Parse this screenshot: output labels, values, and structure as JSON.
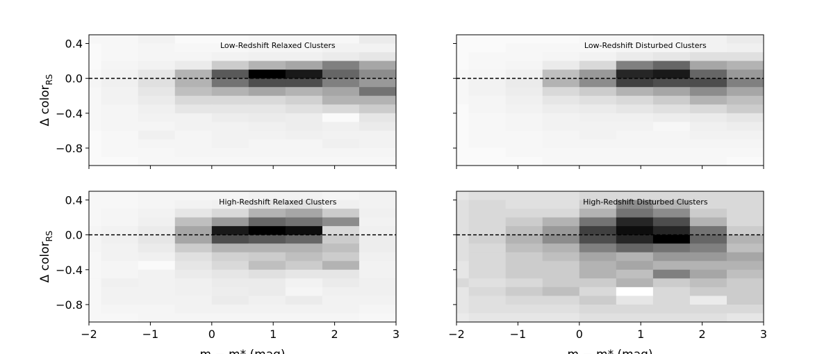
{
  "chart_data": [
    {
      "type": "heatmap",
      "title": "Low-Redshift Relaxed Clusters",
      "ylabel": "Δ color",
      "ylabel_sub": "RS",
      "colormap": "Greys",
      "x_edges": [
        -2.4,
        -1.8,
        -1.2,
        -0.6,
        0,
        0.6,
        1.2,
        1.8,
        2.4,
        3.0
      ],
      "y_edges": [
        0.5,
        0.4,
        0.3,
        0.2,
        0.1,
        0,
        -0.1,
        -0.2,
        -0.3,
        -0.4,
        -0.5,
        -0.6,
        -0.7,
        -0.8,
        -0.9,
        -1.0
      ],
      "z": [
        [
          0.03,
          0.03,
          0.05,
          0.02,
          0.02,
          0.03,
          0.03,
          0.03,
          0.08
        ],
        [
          0.02,
          0.03,
          0.04,
          0.03,
          0.03,
          0.04,
          0.04,
          0.05,
          0.05
        ],
        [
          0.02,
          0.03,
          0.04,
          0.04,
          0.05,
          0.06,
          0.06,
          0.08,
          0.1
        ],
        [
          0.02,
          0.04,
          0.05,
          0.08,
          0.2,
          0.3,
          0.35,
          0.5,
          0.35
        ],
        [
          0.03,
          0.05,
          0.1,
          0.3,
          0.65,
          1,
          0.9,
          0.6,
          0.45
        ],
        [
          0.04,
          0.06,
          0.12,
          0.3,
          0.55,
          0.7,
          0.7,
          0.5,
          0.4
        ],
        [
          0.03,
          0.05,
          0.1,
          0.25,
          0.3,
          0.35,
          0.3,
          0.35,
          0.55
        ],
        [
          0.03,
          0.05,
          0.08,
          0.15,
          0.15,
          0.15,
          0.18,
          0.3,
          0.3
        ],
        [
          0.03,
          0.04,
          0.06,
          0.1,
          0.1,
          0.1,
          0.12,
          0.15,
          0.2
        ],
        [
          0.03,
          0.04,
          0.05,
          0.05,
          0.07,
          0.08,
          0.07,
          0.02,
          0.1
        ],
        [
          0.03,
          0.04,
          0.04,
          0.05,
          0.05,
          0.06,
          0.07,
          0.06,
          0.08
        ],
        [
          0.02,
          0.03,
          0.06,
          0.04,
          0.05,
          0.05,
          0.06,
          0.05,
          0.05
        ],
        [
          0.02,
          0.03,
          0.04,
          0.04,
          0.05,
          0.04,
          0.04,
          0.06,
          0.05
        ],
        [
          0.02,
          0.03,
          0.03,
          0.04,
          0.04,
          0.04,
          0.04,
          0.04,
          0.04
        ],
        [
          0.02,
          0.02,
          0.03,
          0.03,
          0.03,
          0.03,
          0.03,
          0.03,
          0.03
        ]
      ],
      "xlim": [
        -2,
        3
      ],
      "ylim": [
        -1.0,
        0.5
      ],
      "hline": 0,
      "xticks": [
        {
          "value": -2,
          "label": "−2"
        },
        {
          "value": -1,
          "label": "−1"
        },
        0,
        1,
        2,
        3
      ],
      "yticks": [
        {
          "value": 0.4,
          "label": "0.4"
        },
        {
          "value": 0,
          "label": "0.0"
        },
        {
          "value": -0.4,
          "label": "−0.4"
        },
        {
          "value": -0.8,
          "label": "−0.8"
        }
      ],
      "xtick_labels": false,
      "ytick_labels": true
    },
    {
      "type": "heatmap",
      "title": "Low-Redshift Disturbed Clusters",
      "colormap": "Greys",
      "x_edges": [
        -2.4,
        -1.8,
        -1.2,
        -0.6,
        0,
        0.6,
        1.2,
        1.8,
        2.4,
        3.0
      ],
      "y_edges": [
        0.5,
        0.4,
        0.3,
        0.2,
        0.1,
        0,
        -0.1,
        -0.2,
        -0.3,
        -0.4,
        -0.5,
        -0.6,
        -0.7,
        -0.8,
        -0.9,
        -1.0
      ],
      "z": [
        [
          0.02,
          0.02,
          0.02,
          0.02,
          0.03,
          0.03,
          0.04,
          0.05,
          0.08
        ],
        [
          0.02,
          0.02,
          0.03,
          0.03,
          0.03,
          0.04,
          0.04,
          0.05,
          0.06
        ],
        [
          0.02,
          0.03,
          0.03,
          0.04,
          0.05,
          0.08,
          0.1,
          0.12,
          0.12
        ],
        [
          0.02,
          0.03,
          0.04,
          0.08,
          0.15,
          0.5,
          0.6,
          0.35,
          0.3
        ],
        [
          0.03,
          0.04,
          0.06,
          0.25,
          0.4,
          0.85,
          0.9,
          0.6,
          0.4
        ],
        [
          0.03,
          0.05,
          0.08,
          0.3,
          0.45,
          0.75,
          0.7,
          0.7,
          0.5
        ],
        [
          0.03,
          0.05,
          0.07,
          0.15,
          0.2,
          0.3,
          0.35,
          0.45,
          0.35
        ],
        [
          0.03,
          0.04,
          0.06,
          0.1,
          0.12,
          0.15,
          0.2,
          0.3,
          0.25
        ],
        [
          0.02,
          0.04,
          0.05,
          0.07,
          0.08,
          0.1,
          0.12,
          0.15,
          0.2
        ],
        [
          0.02,
          0.03,
          0.04,
          0.05,
          0.06,
          0.06,
          0.07,
          0.08,
          0.1
        ],
        [
          0.02,
          0.03,
          0.04,
          0.05,
          0.05,
          0.05,
          0.03,
          0.06,
          0.07
        ],
        [
          0.02,
          0.03,
          0.03,
          0.04,
          0.05,
          0.04,
          0.04,
          0.05,
          0.05
        ],
        [
          0.02,
          0.03,
          0.03,
          0.04,
          0.04,
          0.04,
          0.04,
          0.04,
          0.04
        ],
        [
          0.02,
          0.02,
          0.03,
          0.03,
          0.03,
          0.03,
          0.03,
          0.03,
          0.03
        ],
        [
          0.02,
          0.02,
          0.02,
          0.03,
          0.03,
          0.03,
          0.03,
          0.03,
          0.02
        ]
      ],
      "xlim": [
        -2,
        3
      ],
      "ylim": [
        -1.0,
        0.5
      ],
      "hline": 0,
      "xticks": [
        -2,
        -1,
        0,
        1,
        2,
        3
      ],
      "yticks": [
        0.4,
        0,
        -0.4,
        -0.8
      ],
      "xtick_labels": false,
      "ytick_labels": false
    },
    {
      "type": "heatmap",
      "title": "High-Redshift Relaxed Clusters",
      "ylabel": "Δ color",
      "ylabel_sub": "RS",
      "xlabel": "m − m* (mag)",
      "colormap": "Greys",
      "x_edges": [
        -2.4,
        -1.8,
        -1.2,
        -0.6,
        0,
        0.6,
        1.2,
        1.8,
        2.4,
        3.0
      ],
      "y_edges": [
        0.5,
        0.4,
        0.3,
        0.2,
        0.1,
        0,
        -0.1,
        -0.2,
        -0.3,
        -0.4,
        -0.5,
        -0.6,
        -0.7,
        -0.8,
        -0.9,
        -1.0
      ],
      "z": [
        [
          0.03,
          0.03,
          0.04,
          0.04,
          0.04,
          0.05,
          0.05,
          0.04,
          0.05
        ],
        [
          0.03,
          0.03,
          0.04,
          0.05,
          0.06,
          0.1,
          0.12,
          0.06,
          0.05
        ],
        [
          0.03,
          0.04,
          0.05,
          0.1,
          0.15,
          0.3,
          0.35,
          0.2,
          0.06
        ],
        [
          0.03,
          0.04,
          0.06,
          0.25,
          0.4,
          0.6,
          0.55,
          0.45,
          0.05
        ],
        [
          0.04,
          0.05,
          0.08,
          0.35,
          0.9,
          1,
          0.95,
          0.15,
          0.06
        ],
        [
          0.04,
          0.06,
          0.1,
          0.35,
          0.7,
          0.65,
          0.6,
          0.2,
          0.07
        ],
        [
          0.04,
          0.05,
          0.08,
          0.2,
          0.3,
          0.3,
          0.3,
          0.25,
          0.07
        ],
        [
          0.03,
          0.05,
          0.06,
          0.12,
          0.18,
          0.2,
          0.25,
          0.2,
          0.06
        ],
        [
          0.03,
          0.04,
          0.02,
          0.1,
          0.15,
          0.25,
          0.2,
          0.3,
          0.05
        ],
        [
          0.03,
          0.04,
          0.05,
          0.08,
          0.1,
          0.12,
          0.1,
          0.1,
          0.05
        ],
        [
          0.03,
          0.06,
          0.05,
          0.06,
          0.08,
          0.08,
          0.05,
          0.08,
          0.06
        ],
        [
          0.03,
          0.05,
          0.05,
          0.06,
          0.07,
          0.08,
          0.04,
          0.06,
          0.06
        ],
        [
          0.03,
          0.05,
          0.05,
          0.05,
          0.08,
          0.06,
          0.08,
          0.05,
          0.05
        ],
        [
          0.03,
          0.04,
          0.04,
          0.05,
          0.05,
          0.05,
          0.05,
          0.05,
          0.04
        ],
        [
          0.03,
          0.03,
          0.04,
          0.04,
          0.04,
          0.04,
          0.04,
          0.04,
          0.03
        ]
      ],
      "xlim": [
        -2,
        3
      ],
      "ylim": [
        -1.0,
        0.5
      ],
      "hline": 0,
      "xticks": [
        {
          "value": -2,
          "label": "−2"
        },
        {
          "value": -1,
          "label": "−1"
        },
        0,
        1,
        2,
        3
      ],
      "yticks": [
        {
          "value": 0.4,
          "label": "0.4"
        },
        {
          "value": 0,
          "label": "0.0"
        },
        {
          "value": -0.4,
          "label": "−0.4"
        },
        {
          "value": -0.8,
          "label": "−0.8"
        }
      ],
      "xtick_labels": true,
      "ytick_labels": true
    },
    {
      "type": "heatmap",
      "title": "High-Redshift Disturbed Clusters",
      "xlabel": "m − m* (mag)",
      "colormap": "Greys",
      "x_edges": [
        -2.4,
        -1.8,
        -1.2,
        -0.6,
        0,
        0.6,
        1.2,
        1.8,
        2.4,
        3.0
      ],
      "y_edges": [
        0.5,
        0.4,
        0.3,
        0.2,
        0.1,
        0,
        -0.1,
        -0.2,
        -0.3,
        -0.4,
        -0.5,
        -0.6,
        -0.7,
        -0.8,
        -0.9,
        -1.0
      ],
      "z": [
        [
          0.1,
          0.12,
          0.12,
          0.12,
          0.15,
          0.15,
          0.15,
          0.15,
          0.15
        ],
        [
          0.12,
          0.15,
          0.12,
          0.12,
          0.2,
          0.45,
          0.3,
          0.15,
          0.15
        ],
        [
          0.12,
          0.15,
          0.15,
          0.15,
          0.3,
          0.55,
          0.45,
          0.2,
          0.15
        ],
        [
          0.12,
          0.15,
          0.2,
          0.3,
          0.55,
          0.85,
          0.7,
          0.3,
          0.15
        ],
        [
          0.12,
          0.15,
          0.25,
          0.4,
          0.75,
          0.95,
          0.85,
          0.55,
          0.2
        ],
        [
          0.12,
          0.18,
          0.3,
          0.45,
          0.7,
          0.85,
          1,
          0.6,
          0.3
        ],
        [
          0.12,
          0.15,
          0.25,
          0.3,
          0.5,
          0.6,
          0.55,
          0.5,
          0.25
        ],
        [
          0.12,
          0.15,
          0.2,
          0.25,
          0.35,
          0.3,
          0.4,
          0.4,
          0.35
        ],
        [
          0.1,
          0.15,
          0.2,
          0.2,
          0.3,
          0.35,
          0.3,
          0.3,
          0.3
        ],
        [
          0.1,
          0.15,
          0.2,
          0.2,
          0.3,
          0.25,
          0.5,
          0.35,
          0.25
        ],
        [
          0.15,
          0.12,
          0.15,
          0.2,
          0.2,
          0.3,
          0.2,
          0.25,
          0.2
        ],
        [
          0.1,
          0.15,
          0.2,
          0.25,
          0.15,
          0,
          0.15,
          0.2,
          0.2
        ],
        [
          0.1,
          0.12,
          0.15,
          0.15,
          0.2,
          0.1,
          0.15,
          0.08,
          0.2
        ],
        [
          0.1,
          0.12,
          0.12,
          0.12,
          0.15,
          0.15,
          0.15,
          0.15,
          0.15
        ],
        [
          0.08,
          0.1,
          0.1,
          0.1,
          0.12,
          0.12,
          0.12,
          0.12,
          0.1
        ]
      ],
      "xlim": [
        -2,
        3
      ],
      "ylim": [
        -1.0,
        0.5
      ],
      "hline": 0,
      "xticks": [
        {
          "value": -2,
          "label": "−2"
        },
        {
          "value": -1,
          "label": "−1"
        },
        0,
        1,
        2,
        3
      ],
      "yticks": [
        0.4,
        0,
        -0.4,
        -0.8
      ],
      "xtick_labels": true,
      "ytick_labels": false
    }
  ]
}
